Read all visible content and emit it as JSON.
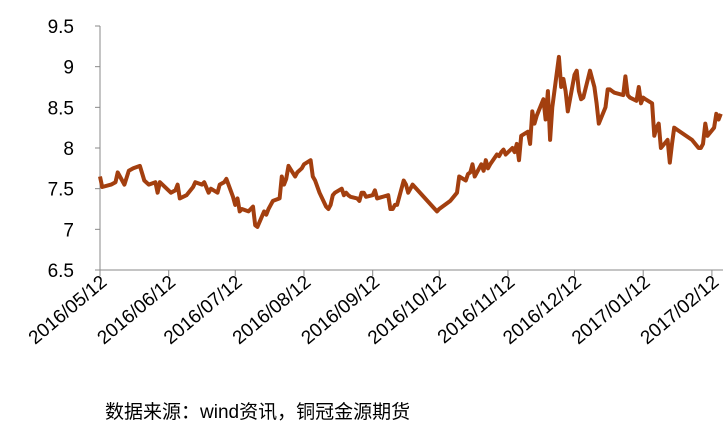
{
  "chart_data": {
    "type": "line",
    "x": [
      "2016/05/12",
      "2016/05/13",
      "2016/05/17",
      "2016/05/19",
      "2016/05/20",
      "2016/05/23",
      "2016/05/25",
      "2016/05/27",
      "2016/05/30",
      "2016/06/01",
      "2016/06/03",
      "2016/06/06",
      "2016/06/07",
      "2016/06/08",
      "2016/06/13",
      "2016/06/15",
      "2016/06/16",
      "2016/06/17",
      "2016/06/20",
      "2016/06/23",
      "2016/06/24",
      "2016/06/27",
      "2016/06/28",
      "2016/06/30",
      "2016/07/01",
      "2016/07/04",
      "2016/07/05",
      "2016/07/07",
      "2016/07/08",
      "2016/07/11",
      "2016/07/12",
      "2016/07/13",
      "2016/07/14",
      "2016/07/15",
      "2016/07/18",
      "2016/07/20",
      "2016/07/21",
      "2016/07/22",
      "2016/07/25",
      "2016/07/26",
      "2016/07/27",
      "2016/07/28",
      "2016/07/29",
      "2016/08/01",
      "2016/08/02",
      "2016/08/03",
      "2016/08/04",
      "2016/08/05",
      "2016/08/08",
      "2016/08/09",
      "2016/08/11",
      "2016/08/12",
      "2016/08/15",
      "2016/08/16",
      "2016/08/17",
      "2016/08/19",
      "2016/08/22",
      "2016/08/23",
      "2016/08/24",
      "2016/08/25",
      "2016/08/26",
      "2016/08/29",
      "2016/08/30",
      "2016/08/31",
      "2016/09/01",
      "2016/09/02",
      "2016/09/05",
      "2016/09/06",
      "2016/09/07",
      "2016/09/08",
      "2016/09/09",
      "2016/09/12",
      "2016/09/13",
      "2016/09/14",
      "2016/09/19",
      "2016/09/20",
      "2016/09/21",
      "2016/09/22",
      "2016/09/23",
      "2016/09/26",
      "2016/09/27",
      "2016/09/28",
      "2016/09/29",
      "2016/09/30",
      "2016/10/10",
      "2016/10/11",
      "2016/10/12",
      "2016/10/17",
      "2016/10/20",
      "2016/10/21",
      "2016/10/24",
      "2016/10/25",
      "2016/10/26",
      "2016/10/27",
      "2016/10/28",
      "2016/10/31",
      "2016/11/01",
      "2016/11/02",
      "2016/11/03",
      "2016/11/04",
      "2016/11/07",
      "2016/11/08",
      "2016/11/09",
      "2016/11/10",
      "2016/11/11",
      "2016/11/14",
      "2016/11/15",
      "2016/11/16",
      "2016/11/17",
      "2016/11/18",
      "2016/11/21",
      "2016/11/22",
      "2016/11/23",
      "2016/11/24",
      "2016/11/25",
      "2016/11/28",
      "2016/11/29",
      "2016/11/30",
      "2016/12/01",
      "2016/12/02",
      "2016/12/05",
      "2016/12/06",
      "2016/12/07",
      "2016/12/08",
      "2016/12/09",
      "2016/12/12",
      "2016/12/13",
      "2016/12/14",
      "2016/12/15",
      "2016/12/16",
      "2016/12/19",
      "2016/12/20",
      "2016/12/21",
      "2016/12/22",
      "2016/12/23",
      "2016/12/26",
      "2016/12/27",
      "2016/12/28",
      "2016/12/29",
      "2016/12/30",
      "2017/01/03",
      "2017/01/04",
      "2017/01/05",
      "2017/01/06",
      "2017/01/09",
      "2017/01/10",
      "2017/01/11",
      "2017/01/12",
      "2017/01/13",
      "2017/01/16",
      "2017/01/17",
      "2017/01/18",
      "2017/01/19",
      "2017/01/20",
      "2017/01/23",
      "2017/01/24",
      "2017/01/25",
      "2017/01/26",
      "2017/02/03",
      "2017/02/06",
      "2017/02/07",
      "2017/02/08",
      "2017/02/09",
      "2017/02/10",
      "2017/02/13",
      "2017/02/14",
      "2017/02/15",
      "2017/02/16"
    ],
    "series": [
      {
        "color": "#a33f0f",
        "values": [
          7.65,
          7.52,
          7.55,
          7.58,
          7.7,
          7.55,
          7.72,
          7.75,
          7.78,
          7.6,
          7.55,
          7.58,
          7.45,
          7.58,
          7.45,
          7.48,
          7.55,
          7.38,
          7.42,
          7.52,
          7.58,
          7.55,
          7.58,
          7.45,
          7.5,
          7.45,
          7.55,
          7.58,
          7.62,
          7.4,
          7.3,
          7.38,
          7.22,
          7.25,
          7.22,
          7.28,
          7.05,
          7.03,
          7.22,
          7.18,
          7.25,
          7.3,
          7.35,
          7.38,
          7.65,
          7.55,
          7.62,
          7.78,
          7.65,
          7.7,
          7.75,
          7.8,
          7.85,
          7.65,
          7.6,
          7.45,
          7.28,
          7.25,
          7.3,
          7.42,
          7.45,
          7.5,
          7.42,
          7.45,
          7.42,
          7.4,
          7.38,
          7.35,
          7.45,
          7.45,
          7.4,
          7.42,
          7.48,
          7.38,
          7.42,
          7.25,
          7.25,
          7.3,
          7.3,
          7.6,
          7.55,
          7.45,
          7.5,
          7.55,
          7.25,
          7.22,
          7.25,
          7.35,
          7.45,
          7.65,
          7.6,
          7.68,
          7.7,
          7.8,
          7.65,
          7.8,
          7.72,
          7.85,
          7.75,
          7.8,
          7.92,
          7.9,
          7.95,
          7.98,
          7.92,
          8.0,
          7.95,
          8.05,
          7.85,
          8.15,
          8.2,
          8.05,
          8.45,
          8.3,
          8.4,
          8.6,
          8.35,
          8.7,
          8.1,
          8.5,
          9.12,
          8.75,
          8.85,
          8.7,
          8.45,
          8.9,
          8.95,
          8.7,
          8.6,
          8.62,
          8.95,
          8.85,
          8.75,
          8.55,
          8.3,
          8.5,
          8.72,
          8.72,
          8.7,
          8.68,
          8.65,
          8.88,
          8.65,
          8.62,
          8.58,
          8.75,
          8.55,
          8.62,
          8.6,
          8.55,
          8.15,
          8.25,
          8.3,
          8.0,
          8.1,
          7.82,
          8.05,
          8.25,
          8.1,
          8.0,
          8.0,
          8.05,
          8.3,
          8.15,
          8.25,
          8.42,
          8.35,
          8.42
        ]
      }
    ],
    "xlim": [
      "2016/05/12",
      "2017/02/17"
    ],
    "xticks": [
      "2016/05/12",
      "2016/06/12",
      "2016/07/12",
      "2016/08/12",
      "2016/09/12",
      "2016/10/12",
      "2016/11/12",
      "2016/12/12",
      "2017/01/12",
      "2017/02/12"
    ],
    "ylim": [
      6.5,
      9.5
    ],
    "yticks": [
      6.5,
      7,
      7.5,
      8,
      8.5,
      9,
      9.5
    ],
    "grid": false,
    "note": "数据来源：wind资讯，铜冠金源期货"
  }
}
